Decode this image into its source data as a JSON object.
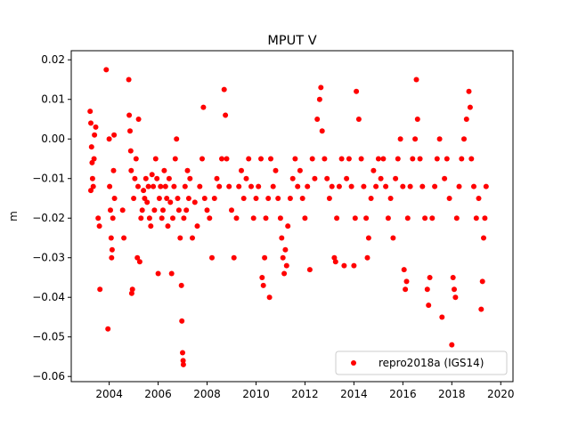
{
  "chart_data": {
    "type": "scatter",
    "title": "MPUT V",
    "xlabel": "",
    "ylabel": "m",
    "xlim": [
      2002.45,
      2020.5
    ],
    "ylim": [
      -0.0613,
      0.0223
    ],
    "x_ticks": [
      2004,
      2006,
      2008,
      2010,
      2012,
      2014,
      2016,
      2018,
      2020
    ],
    "x_tick_labels": [
      "2004",
      "2006",
      "2008",
      "2010",
      "2012",
      "2014",
      "2016",
      "2018",
      "2020"
    ],
    "y_ticks": [
      0.02,
      0.01,
      0.0,
      -0.01,
      -0.02,
      -0.03,
      -0.04,
      -0.05,
      -0.06
    ],
    "y_tick_labels": [
      "0.02",
      "0.01",
      "0.00",
      "−0.01",
      "−0.02",
      "−0.03",
      "−0.04",
      "−0.05",
      "−0.06"
    ],
    "grid": false,
    "legend_position": "lower-right",
    "series": [
      {
        "name": "repro2018a (IGS14)",
        "color": "#ff0000",
        "marker": "circle",
        "points": [
          [
            2003.22,
            0.007
          ],
          [
            2003.25,
            0.004
          ],
          [
            2003.28,
            -0.002
          ],
          [
            2003.3,
            -0.006
          ],
          [
            2003.32,
            -0.01
          ],
          [
            2003.25,
            -0.013
          ],
          [
            2003.35,
            -0.012
          ],
          [
            2003.38,
            -0.005
          ],
          [
            2003.4,
            0.001
          ],
          [
            2003.45,
            0.003
          ],
          [
            2003.55,
            -0.02
          ],
          [
            2003.6,
            -0.022
          ],
          [
            2003.62,
            -0.038
          ],
          [
            2003.88,
            0.0175
          ],
          [
            2003.95,
            -0.048
          ],
          [
            2004.0,
            0.0
          ],
          [
            2004.02,
            -0.012
          ],
          [
            2004.05,
            -0.018
          ],
          [
            2004.08,
            -0.025
          ],
          [
            2004.1,
            -0.03
          ],
          [
            2004.12,
            -0.028
          ],
          [
            2004.15,
            -0.02
          ],
          [
            2004.18,
            -0.008
          ],
          [
            2004.2,
            0.001
          ],
          [
            2004.22,
            -0.015
          ],
          [
            2004.55,
            -0.018
          ],
          [
            2004.6,
            -0.025
          ],
          [
            2004.8,
            0.015
          ],
          [
            2004.82,
            0.006
          ],
          [
            2004.85,
            0.002
          ],
          [
            2004.88,
            -0.003
          ],
          [
            2004.9,
            -0.008
          ],
          [
            2004.92,
            -0.039
          ],
          [
            2004.95,
            -0.038
          ],
          [
            2005.0,
            -0.015
          ],
          [
            2005.05,
            -0.01
          ],
          [
            2005.1,
            -0.005
          ],
          [
            2005.15,
            -0.03
          ],
          [
            2005.18,
            -0.012
          ],
          [
            2005.2,
            0.005
          ],
          [
            2005.25,
            -0.031
          ],
          [
            2005.3,
            -0.02
          ],
          [
            2005.35,
            -0.018
          ],
          [
            2005.4,
            -0.013
          ],
          [
            2005.45,
            -0.015
          ],
          [
            2005.5,
            -0.01
          ],
          [
            2005.55,
            -0.016
          ],
          [
            2005.6,
            -0.012
          ],
          [
            2005.65,
            -0.02
          ],
          [
            2005.7,
            -0.022
          ],
          [
            2005.75,
            -0.009
          ],
          [
            2005.8,
            -0.012
          ],
          [
            2005.85,
            -0.018
          ],
          [
            2005.9,
            -0.005
          ],
          [
            2005.95,
            -0.01
          ],
          [
            2006.0,
            -0.034
          ],
          [
            2006.05,
            -0.015
          ],
          [
            2006.1,
            -0.012
          ],
          [
            2006.15,
            -0.02
          ],
          [
            2006.2,
            -0.018
          ],
          [
            2006.25,
            -0.008
          ],
          [
            2006.3,
            -0.012
          ],
          [
            2006.35,
            -0.015
          ],
          [
            2006.4,
            -0.022
          ],
          [
            2006.45,
            -0.01
          ],
          [
            2006.5,
            -0.016
          ],
          [
            2006.55,
            -0.034
          ],
          [
            2006.6,
            -0.02
          ],
          [
            2006.65,
            -0.012
          ],
          [
            2006.7,
            -0.005
          ],
          [
            2006.75,
            0.0
          ],
          [
            2006.8,
            -0.015
          ],
          [
            2006.85,
            -0.018
          ],
          [
            2006.9,
            -0.025
          ],
          [
            2006.95,
            -0.037
          ],
          [
            2006.97,
            -0.046
          ],
          [
            2007.0,
            -0.054
          ],
          [
            2007.02,
            -0.056
          ],
          [
            2007.03,
            -0.057
          ],
          [
            2007.05,
            -0.02
          ],
          [
            2007.1,
            -0.012
          ],
          [
            2007.15,
            -0.018
          ],
          [
            2007.2,
            -0.008
          ],
          [
            2007.25,
            -0.015
          ],
          [
            2007.3,
            -0.01
          ],
          [
            2007.4,
            -0.025
          ],
          [
            2007.5,
            -0.016
          ],
          [
            2007.6,
            -0.022
          ],
          [
            2007.7,
            -0.012
          ],
          [
            2007.8,
            -0.005
          ],
          [
            2007.85,
            0.008
          ],
          [
            2007.9,
            -0.015
          ],
          [
            2008.0,
            -0.018
          ],
          [
            2008.1,
            -0.02
          ],
          [
            2008.2,
            -0.03
          ],
          [
            2008.3,
            -0.015
          ],
          [
            2008.4,
            -0.01
          ],
          [
            2008.5,
            -0.012
          ],
          [
            2008.6,
            -0.005
          ],
          [
            2008.7,
            0.0125
          ],
          [
            2008.75,
            0.006
          ],
          [
            2008.8,
            -0.005
          ],
          [
            2008.9,
            -0.012
          ],
          [
            2009.0,
            -0.018
          ],
          [
            2009.1,
            -0.03
          ],
          [
            2009.2,
            -0.02
          ],
          [
            2009.3,
            -0.012
          ],
          [
            2009.4,
            -0.008
          ],
          [
            2009.5,
            -0.015
          ],
          [
            2009.6,
            -0.01
          ],
          [
            2009.7,
            -0.005
          ],
          [
            2009.8,
            -0.012
          ],
          [
            2009.9,
            -0.02
          ],
          [
            2010.0,
            -0.015
          ],
          [
            2010.1,
            -0.012
          ],
          [
            2010.2,
            -0.005
          ],
          [
            2010.25,
            -0.035
          ],
          [
            2010.3,
            -0.037
          ],
          [
            2010.35,
            -0.03
          ],
          [
            2010.4,
            -0.02
          ],
          [
            2010.5,
            -0.015
          ],
          [
            2010.55,
            -0.04
          ],
          [
            2010.6,
            -0.005
          ],
          [
            2010.7,
            -0.012
          ],
          [
            2010.8,
            -0.008
          ],
          [
            2010.9,
            -0.015
          ],
          [
            2011.0,
            -0.02
          ],
          [
            2011.05,
            -0.025
          ],
          [
            2011.1,
            -0.03
          ],
          [
            2011.15,
            -0.034
          ],
          [
            2011.2,
            -0.028
          ],
          [
            2011.25,
            -0.032
          ],
          [
            2011.3,
            -0.022
          ],
          [
            2011.4,
            -0.015
          ],
          [
            2011.5,
            -0.01
          ],
          [
            2011.6,
            -0.005
          ],
          [
            2011.7,
            -0.012
          ],
          [
            2011.8,
            -0.008
          ],
          [
            2011.9,
            -0.015
          ],
          [
            2012.0,
            -0.02
          ],
          [
            2012.1,
            -0.012
          ],
          [
            2012.2,
            -0.033
          ],
          [
            2012.3,
            -0.005
          ],
          [
            2012.4,
            -0.01
          ],
          [
            2012.5,
            0.005
          ],
          [
            2012.6,
            0.01
          ],
          [
            2012.65,
            0.013
          ],
          [
            2012.7,
            0.002
          ],
          [
            2012.8,
            -0.005
          ],
          [
            2012.9,
            -0.01
          ],
          [
            2013.0,
            -0.015
          ],
          [
            2013.1,
            -0.012
          ],
          [
            2013.2,
            -0.03
          ],
          [
            2013.25,
            -0.031
          ],
          [
            2013.3,
            -0.02
          ],
          [
            2013.4,
            -0.012
          ],
          [
            2013.5,
            -0.005
          ],
          [
            2013.6,
            -0.032
          ],
          [
            2013.7,
            -0.01
          ],
          [
            2013.8,
            -0.005
          ],
          [
            2013.9,
            -0.012
          ],
          [
            2014.0,
            -0.032
          ],
          [
            2014.05,
            -0.02
          ],
          [
            2014.1,
            0.012
          ],
          [
            2014.2,
            0.005
          ],
          [
            2014.3,
            -0.005
          ],
          [
            2014.4,
            -0.012
          ],
          [
            2014.5,
            -0.02
          ],
          [
            2014.55,
            -0.03
          ],
          [
            2014.6,
            -0.025
          ],
          [
            2014.7,
            -0.015
          ],
          [
            2014.8,
            -0.008
          ],
          [
            2014.9,
            -0.012
          ],
          [
            2015.0,
            -0.005
          ],
          [
            2015.1,
            -0.01
          ],
          [
            2015.2,
            -0.005
          ],
          [
            2015.3,
            -0.012
          ],
          [
            2015.4,
            -0.02
          ],
          [
            2015.5,
            -0.015
          ],
          [
            2015.6,
            -0.025
          ],
          [
            2015.7,
            -0.01
          ],
          [
            2015.8,
            -0.005
          ],
          [
            2015.9,
            0.0
          ],
          [
            2016.0,
            -0.012
          ],
          [
            2016.05,
            -0.033
          ],
          [
            2016.1,
            -0.038
          ],
          [
            2016.15,
            -0.036
          ],
          [
            2016.2,
            -0.02
          ],
          [
            2016.3,
            -0.012
          ],
          [
            2016.4,
            -0.005
          ],
          [
            2016.5,
            0.0
          ],
          [
            2016.55,
            0.015
          ],
          [
            2016.6,
            0.005
          ],
          [
            2016.7,
            -0.005
          ],
          [
            2016.8,
            -0.012
          ],
          [
            2016.9,
            -0.02
          ],
          [
            2017.0,
            -0.038
          ],
          [
            2017.05,
            -0.042
          ],
          [
            2017.1,
            -0.035
          ],
          [
            2017.2,
            -0.02
          ],
          [
            2017.3,
            -0.012
          ],
          [
            2017.4,
            -0.005
          ],
          [
            2017.5,
            0.0
          ],
          [
            2017.6,
            -0.045
          ],
          [
            2017.7,
            -0.01
          ],
          [
            2017.8,
            -0.005
          ],
          [
            2017.9,
            -0.015
          ],
          [
            2018.0,
            -0.052
          ],
          [
            2018.05,
            -0.035
          ],
          [
            2018.1,
            -0.038
          ],
          [
            2018.15,
            -0.04
          ],
          [
            2018.2,
            -0.02
          ],
          [
            2018.3,
            -0.012
          ],
          [
            2018.4,
            -0.005
          ],
          [
            2018.5,
            0.0
          ],
          [
            2018.6,
            0.005
          ],
          [
            2018.7,
            0.012
          ],
          [
            2018.75,
            0.008
          ],
          [
            2018.8,
            -0.005
          ],
          [
            2018.9,
            -0.012
          ],
          [
            2019.0,
            -0.02
          ],
          [
            2019.1,
            -0.015
          ],
          [
            2019.2,
            -0.043
          ],
          [
            2019.25,
            -0.036
          ],
          [
            2019.3,
            -0.025
          ],
          [
            2019.35,
            -0.02
          ],
          [
            2019.4,
            -0.012
          ]
        ]
      }
    ]
  }
}
